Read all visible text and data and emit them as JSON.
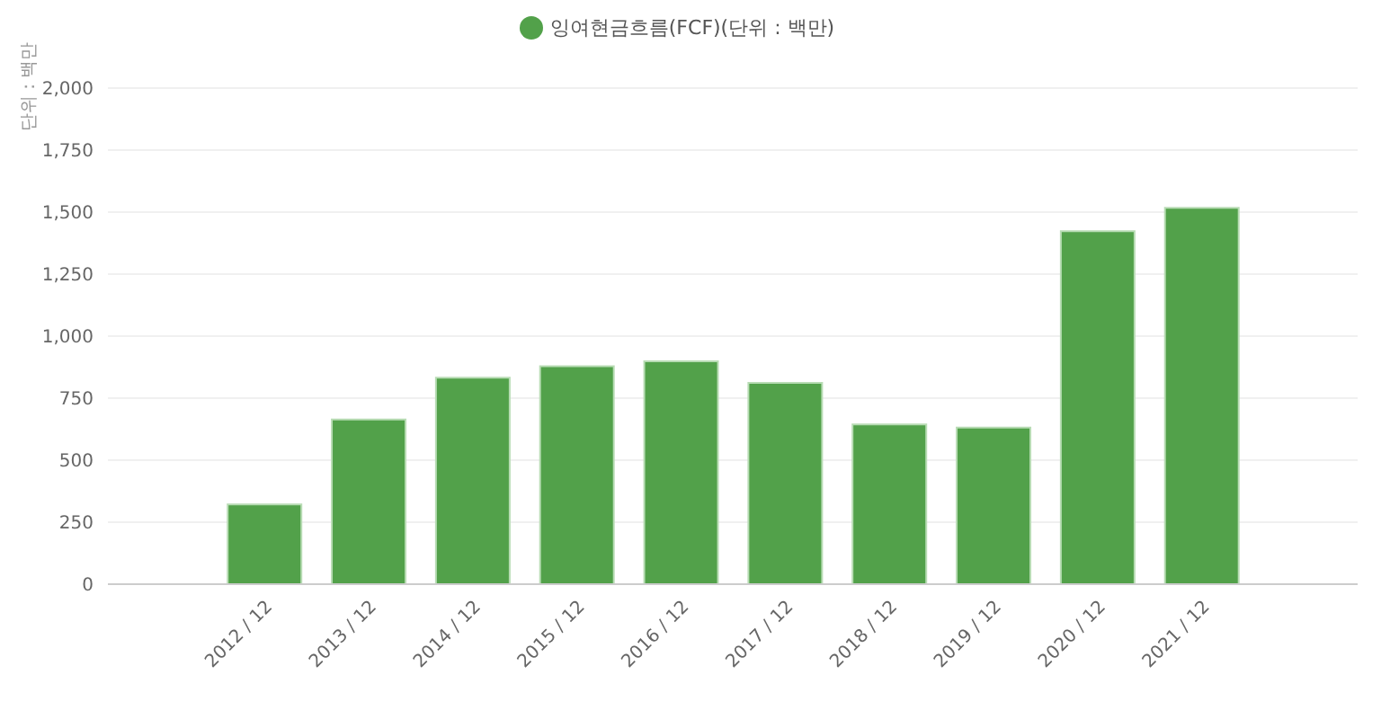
{
  "chart_data": {
    "type": "bar",
    "ylabel": "단위 : 백만",
    "categories": [
      null,
      "2012 / 12",
      "2013 / 12",
      "2014 / 12",
      "2015 / 12",
      "2016 / 12",
      "2017 / 12",
      "2018 / 12",
      "2019 / 12",
      "2020 / 12",
      "2021 / 12",
      null
    ],
    "series": [
      {
        "name": "잉여현금흐름(FCF)(단위 : 백만)",
        "color": "#52a14a",
        "values": [
          null,
          322,
          664,
          832,
          879,
          899,
          812,
          644,
          631,
          1423,
          1517,
          null
        ]
      }
    ],
    "ylim": [
      0,
      2000
    ],
    "yticks": [
      0,
      250,
      500,
      750,
      {
        "value": 1000,
        "label": "1,000"
      },
      {
        "value": 1250,
        "label": "1,250"
      },
      {
        "value": 1500,
        "label": "1,500"
      },
      {
        "value": 1750,
        "label": "1,750"
      },
      {
        "value": 2000,
        "label": "2,000"
      }
    ],
    "grid": "y",
    "legend": "top"
  }
}
